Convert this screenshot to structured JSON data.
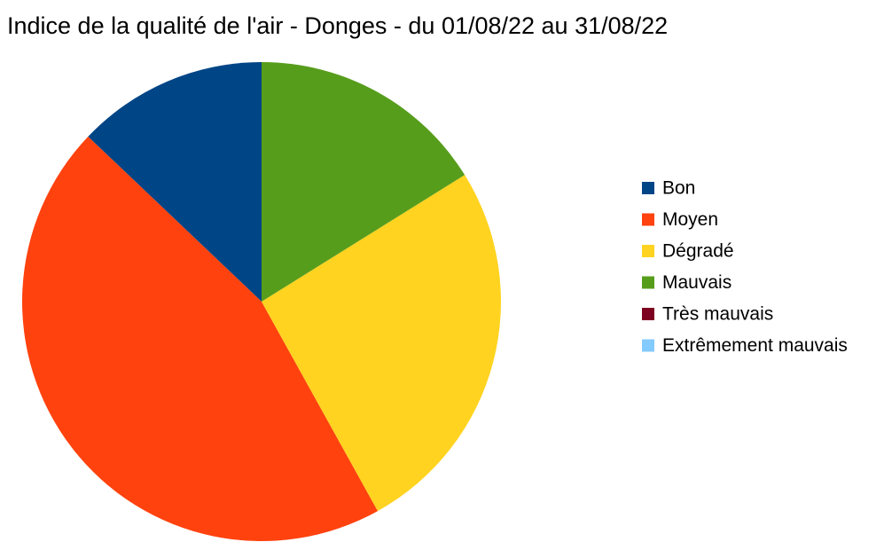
{
  "chart_data": {
    "type": "pie",
    "title": "Indice de la qualité de l'air - Donges - du 01/08/22 au 31/08/22",
    "categories": [
      "Bon",
      "Moyen",
      "Dégradé",
      "Mauvais",
      "Très mauvais",
      "Extrêmement mauvais"
    ],
    "values": [
      4,
      14,
      8,
      5,
      0,
      0
    ],
    "colors": [
      "#004586",
      "#ff420e",
      "#ffd320",
      "#579d1c",
      "#7e0021",
      "#83caff"
    ],
    "legend": "right"
  }
}
